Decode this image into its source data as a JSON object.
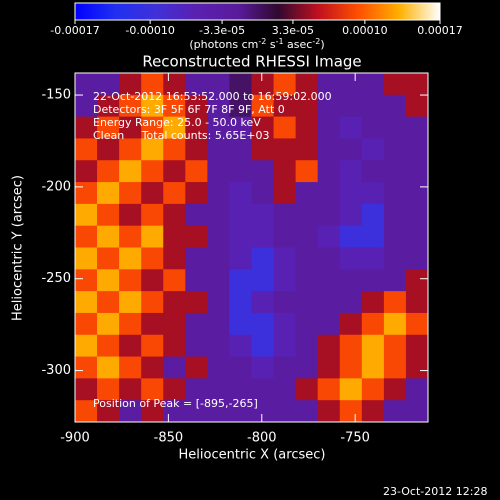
{
  "chart_data": {
    "type": "heatmap",
    "title": "Reconstructed RHESSI Image",
    "x_label": "Heliocentric X (arcsec)",
    "y_label": "Heliocentric Y (arcsec)",
    "annotations": [
      "22-Oct-2012 16:53:52.000 to 16:59:02.000",
      "Detectors: 3F 5F 6F 7F 8F 9F, Att 0",
      "Energy Range: 25.0 - 50.0 keV",
      "Clean     Total counts: 5.65E+03"
    ],
    "peak_label": "Position of Peak = [-895,-265]",
    "footer": "23-Oct-2012 12:28",
    "colorbar_label": [
      "(photons cm",
      "-2",
      " s",
      "-1",
      " asec",
      "-2",
      ")"
    ],
    "zlim": [
      -0.00017,
      0.00017
    ],
    "zticks": [
      {
        "value": -0.00017,
        "label": "-0.00017"
      },
      {
        "value": -0.0001,
        "label": "-0.00010"
      },
      {
        "value": -3.3e-05,
        "label": "-3.3e-05"
      },
      {
        "value": 3.3e-05,
        "label": "3.3e-05"
      },
      {
        "value": 0.0001,
        "label": "0.00010"
      },
      {
        "value": 0.00017,
        "label": "0.00017"
      }
    ],
    "colormap": [
      "#0000ff",
      "#2030f0",
      "#4030d8",
      "#5a20b0",
      "#5a1c9c",
      "#300830",
      "#c01020",
      "#ff5000",
      "#ffb000",
      "#ffffff"
    ],
    "xlim": [
      -900,
      -711
    ],
    "ylim": [
      -328,
      -138
    ],
    "xticks": [
      -900,
      -850,
      -800,
      -750
    ],
    "yticks": [
      -150,
      -200,
      -250,
      -300
    ],
    "z": [
      [
        -3e-05,
        -3e-05,
        5e-05,
        9e-05,
        5e-05,
        -3e-05,
        -3e-05,
        0,
        5e-05,
        9e-05,
        5e-05,
        -3e-05,
        -3e-05,
        -3e-05,
        5e-05,
        5e-05
      ],
      [
        -3e-05,
        5e-05,
        9e-05,
        0.00013,
        9e-05,
        5e-05,
        -3e-05,
        0,
        9e-05,
        5e-05,
        5e-05,
        -3e-05,
        -3e-05,
        -3e-05,
        -3e-05,
        5e-05
      ],
      [
        5e-05,
        9e-05,
        5e-05,
        9e-05,
        0.00013,
        5e-05,
        -3e-05,
        -3e-05,
        5e-05,
        9e-05,
        5e-05,
        -3e-05,
        -6e-05,
        -3e-05,
        -3e-05,
        -3e-05
      ],
      [
        9e-05,
        5e-05,
        9e-05,
        0.00013,
        9e-05,
        5e-05,
        -3e-05,
        -3e-05,
        5e-05,
        5e-05,
        5e-05,
        -3e-05,
        -3e-05,
        -6e-05,
        -3e-05,
        -3e-05
      ],
      [
        5e-05,
        9e-05,
        0.00013,
        9e-05,
        5e-05,
        9e-05,
        -3e-05,
        -3e-05,
        -3e-05,
        5e-05,
        9e-05,
        -3e-05,
        -6e-05,
        -3e-05,
        -3e-05,
        -3e-05
      ],
      [
        9e-05,
        0.00013,
        9e-05,
        5e-05,
        9e-05,
        5e-05,
        -3e-05,
        -6e-05,
        -3e-05,
        5e-05,
        -3e-05,
        -3e-05,
        -6e-05,
        -6e-05,
        -3e-05,
        -3e-05
      ],
      [
        0.00013,
        9e-05,
        5e-05,
        9e-05,
        5e-05,
        -3e-05,
        -3e-05,
        -6e-05,
        -6e-05,
        -3e-05,
        -3e-05,
        -3e-05,
        -6e-05,
        -0.0001,
        -3e-05,
        -3e-05
      ],
      [
        9e-05,
        0.00013,
        9e-05,
        0.00013,
        5e-05,
        5e-05,
        -3e-05,
        -6e-05,
        -6e-05,
        -3e-05,
        -3e-05,
        -6e-05,
        -0.0001,
        -0.0001,
        -3e-05,
        -3e-05
      ],
      [
        0.00013,
        9e-05,
        0.00013,
        9e-05,
        5e-05,
        -3e-05,
        -3e-05,
        -6e-05,
        -0.0001,
        -6e-05,
        -3e-05,
        -3e-05,
        -6e-05,
        -6e-05,
        -3e-05,
        -3e-05
      ],
      [
        9e-05,
        0.00013,
        9e-05,
        5e-05,
        9e-05,
        -3e-05,
        -3e-05,
        -0.0001,
        -0.0001,
        -6e-05,
        -3e-05,
        -3e-05,
        -3e-05,
        -3e-05,
        -3e-05,
        5e-05
      ],
      [
        0.00013,
        9e-05,
        0.00013,
        9e-05,
        5e-05,
        5e-05,
        -3e-05,
        -0.0001,
        -6e-05,
        -3e-05,
        -3e-05,
        -3e-05,
        -3e-05,
        5e-05,
        9e-05,
        5e-05
      ],
      [
        9e-05,
        0.00013,
        9e-05,
        5e-05,
        5e-05,
        -3e-05,
        -3e-05,
        -0.0001,
        -0.0001,
        -6e-05,
        -3e-05,
        -3e-05,
        5e-05,
        9e-05,
        0.00013,
        9e-05
      ],
      [
        0.00013,
        9e-05,
        5e-05,
        9e-05,
        5e-05,
        -3e-05,
        -3e-05,
        -6e-05,
        -0.0001,
        -6e-05,
        -3e-05,
        5e-05,
        9e-05,
        0.00013,
        9e-05,
        5e-05
      ],
      [
        9e-05,
        0.00013,
        9e-05,
        5e-05,
        -3e-05,
        5e-05,
        -3e-05,
        -3e-05,
        -6e-05,
        -3e-05,
        -3e-05,
        5e-05,
        9e-05,
        0.00013,
        9e-05,
        5e-05
      ],
      [
        5e-05,
        9e-05,
        5e-05,
        9e-05,
        5e-05,
        -3e-05,
        -3e-05,
        -3e-05,
        -3e-05,
        -3e-05,
        5e-05,
        9e-05,
        0.00013,
        9e-05,
        5e-05,
        -3e-05
      ],
      [
        9e-05,
        5e-05,
        -3e-05,
        5e-05,
        -3e-05,
        -3e-05,
        -3e-05,
        -3e-05,
        -3e-05,
        -3e-05,
        -3e-05,
        5e-05,
        9e-05,
        5e-05,
        -3e-05,
        -3e-05
      ]
    ]
  }
}
